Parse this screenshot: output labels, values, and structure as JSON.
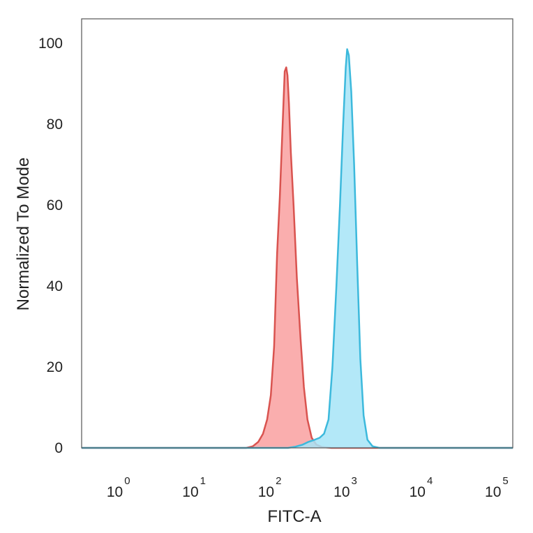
{
  "chart_data": {
    "type": "area",
    "title": "",
    "xlabel": "FITC-A",
    "ylabel": "Normalized To Mode",
    "x_scale": "log",
    "xlim": [
      0.3,
      150000
    ],
    "ylim": [
      0,
      106
    ],
    "x_ticks": [
      {
        "base": "10",
        "exp": "0",
        "value": 1
      },
      {
        "base": "10",
        "exp": "1",
        "value": 10
      },
      {
        "base": "10",
        "exp": "2",
        "value": 100
      },
      {
        "base": "10",
        "exp": "3",
        "value": 1000
      },
      {
        "base": "10",
        "exp": "4",
        "value": 10000
      },
      {
        "base": "10",
        "exp": "5",
        "value": 100000
      }
    ],
    "y_ticks": [
      "0",
      "20",
      "40",
      "60",
      "80",
      "100"
    ],
    "grid": false,
    "legend": "none",
    "series": [
      {
        "color": "#d9534f",
        "fill": "#f9a0a0",
        "points": [
          [
            0.3,
            0
          ],
          [
            45,
            0
          ],
          [
            55,
            0.4
          ],
          [
            65,
            1.5
          ],
          [
            75,
            3.5
          ],
          [
            85,
            7
          ],
          [
            95,
            13
          ],
          [
            105,
            25
          ],
          [
            115,
            48
          ],
          [
            125,
            62
          ],
          [
            135,
            78
          ],
          [
            145,
            93
          ],
          [
            152,
            94
          ],
          [
            158,
            92
          ],
          [
            165,
            85
          ],
          [
            175,
            73
          ],
          [
            190,
            60
          ],
          [
            210,
            42
          ],
          [
            235,
            27
          ],
          [
            260,
            15
          ],
          [
            290,
            7
          ],
          [
            330,
            2.5
          ],
          [
            380,
            0.8
          ],
          [
            450,
            0.2
          ],
          [
            600,
            0
          ],
          [
            1000,
            0
          ],
          [
            1600,
            0
          ],
          [
            150000,
            0
          ]
        ]
      },
      {
        "color": "#3cb9dc",
        "fill": "#a6e4f7",
        "points": [
          [
            0.3,
            0
          ],
          [
            160,
            0
          ],
          [
            200,
            0.3
          ],
          [
            250,
            0.8
          ],
          [
            300,
            1.5
          ],
          [
            360,
            2
          ],
          [
            420,
            2.5
          ],
          [
            480,
            3.5
          ],
          [
            550,
            7
          ],
          [
            620,
            20
          ],
          [
            700,
            40
          ],
          [
            780,
            60
          ],
          [
            860,
            80
          ],
          [
            930,
            94
          ],
          [
            970,
            98.5
          ],
          [
            1020,
            97
          ],
          [
            1100,
            88
          ],
          [
            1200,
            70
          ],
          [
            1320,
            45
          ],
          [
            1450,
            22
          ],
          [
            1600,
            8
          ],
          [
            1800,
            2
          ],
          [
            2100,
            0.4
          ],
          [
            2600,
            0
          ],
          [
            150000,
            0
          ]
        ]
      }
    ]
  }
}
